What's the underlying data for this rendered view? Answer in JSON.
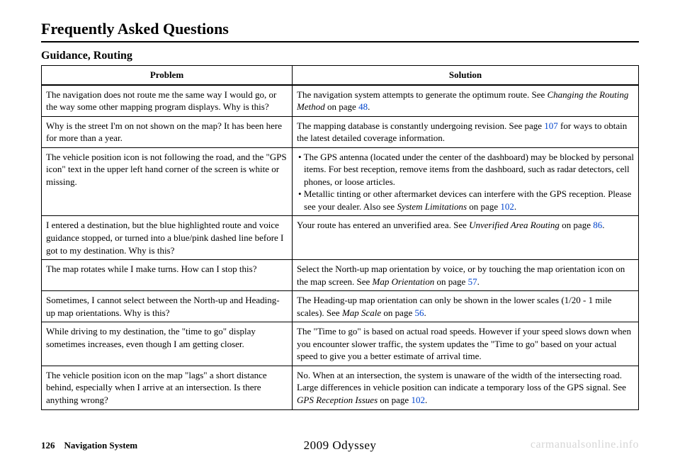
{
  "title": "Frequently Asked Questions",
  "subsection": "Guidance, Routing",
  "columns": {
    "problem": "Problem",
    "solution": "Solution"
  },
  "rows": [
    {
      "problem": "The navigation does not route me the same way I would go, or the way some other mapping program displays. Why is this?",
      "solution_parts": [
        {
          "t": "The navigation system attempts to generate the optimum route. See "
        },
        {
          "t": "Changing the Routing Method",
          "italic": true
        },
        {
          "t": " on page "
        },
        {
          "t": "48",
          "link": true
        },
        {
          "t": "."
        }
      ]
    },
    {
      "problem": "Why is the street I'm on not shown on the map? It has been here for more than a year.",
      "solution_parts": [
        {
          "t": "The mapping database is constantly undergoing revision. See page "
        },
        {
          "t": "107",
          "link": true
        },
        {
          "t": " for ways to obtain the latest detailed coverage information."
        }
      ]
    },
    {
      "problem": "The vehicle position icon is not following the road, and the \"GPS icon\" text in the upper left hand corner of the screen is white or missing.",
      "solution_bullets": [
        [
          {
            "t": "The GPS antenna (located under the center of the dashboard) may be blocked by personal items. For best reception, remove items from the dashboard, such as radar detectors, cell phones, or loose articles."
          }
        ],
        [
          {
            "t": "Metallic tinting or other aftermarket devices can interfere with the GPS reception. Please see your dealer. Also see "
          },
          {
            "t": "System Limitations",
            "italic": true
          },
          {
            "t": " on page "
          },
          {
            "t": "102",
            "link": true
          },
          {
            "t": "."
          }
        ]
      ]
    },
    {
      "problem": "I entered a destination, but the blue highlighted route and voice guidance stopped, or turned into a blue/pink dashed line before I got to my destination. Why is this?",
      "solution_parts": [
        {
          "t": "Your route has entered an unverified area. See "
        },
        {
          "t": "Unverified Area Routing",
          "italic": true
        },
        {
          "t": " on page "
        },
        {
          "t": "86",
          "link": true
        },
        {
          "t": "."
        }
      ]
    },
    {
      "problem": "The map rotates while I make turns. How can I stop this?",
      "solution_parts": [
        {
          "t": "Select the North-up map orientation by voice, or by touching the map orientation icon on the map screen. See "
        },
        {
          "t": "Map Orientation",
          "italic": true
        },
        {
          "t": " on page "
        },
        {
          "t": "57",
          "link": true
        },
        {
          "t": "."
        }
      ]
    },
    {
      "problem": "Sometimes, I cannot select between the North-up and Heading-up map orientations. Why is this?",
      "solution_parts": [
        {
          "t": "The Heading-up map orientation can only be shown in the lower scales (1/20 - 1 mile scales). See "
        },
        {
          "t": "Map Scale",
          "italic": true
        },
        {
          "t": " on page "
        },
        {
          "t": "56",
          "link": true
        },
        {
          "t": "."
        }
      ]
    },
    {
      "problem": "While driving to my destination, the \"time to go\" display sometimes increases, even though I am getting closer.",
      "solution_parts": [
        {
          "t": "The \"Time to go\" is based on actual road speeds. However if your speed slows down when you encounter slower traffic, the system updates the \"Time to go\" based on your actual speed to give you a better estimate of arrival time."
        }
      ]
    },
    {
      "problem": "The vehicle position icon on the map \"lags\" a short distance behind, especially when I arrive at an intersection. Is there anything wrong?",
      "solution_parts": [
        {
          "t": "No. When at an intersection, the system is unaware of the width of the intersecting road. Large differences in vehicle position can indicate a temporary loss of the GPS signal. See "
        },
        {
          "t": "GPS Reception Issues",
          "italic": true
        },
        {
          "t": " on page "
        },
        {
          "t": "102",
          "link": true
        },
        {
          "t": "."
        }
      ]
    }
  ],
  "footer": {
    "page_number": "126",
    "book_title": "Navigation System",
    "vehicle": "2009  Odyssey"
  },
  "watermark": "carmanualsonline.info",
  "style": {
    "link_color": "#0044cc",
    "watermark_color": "#d6d6d6"
  }
}
